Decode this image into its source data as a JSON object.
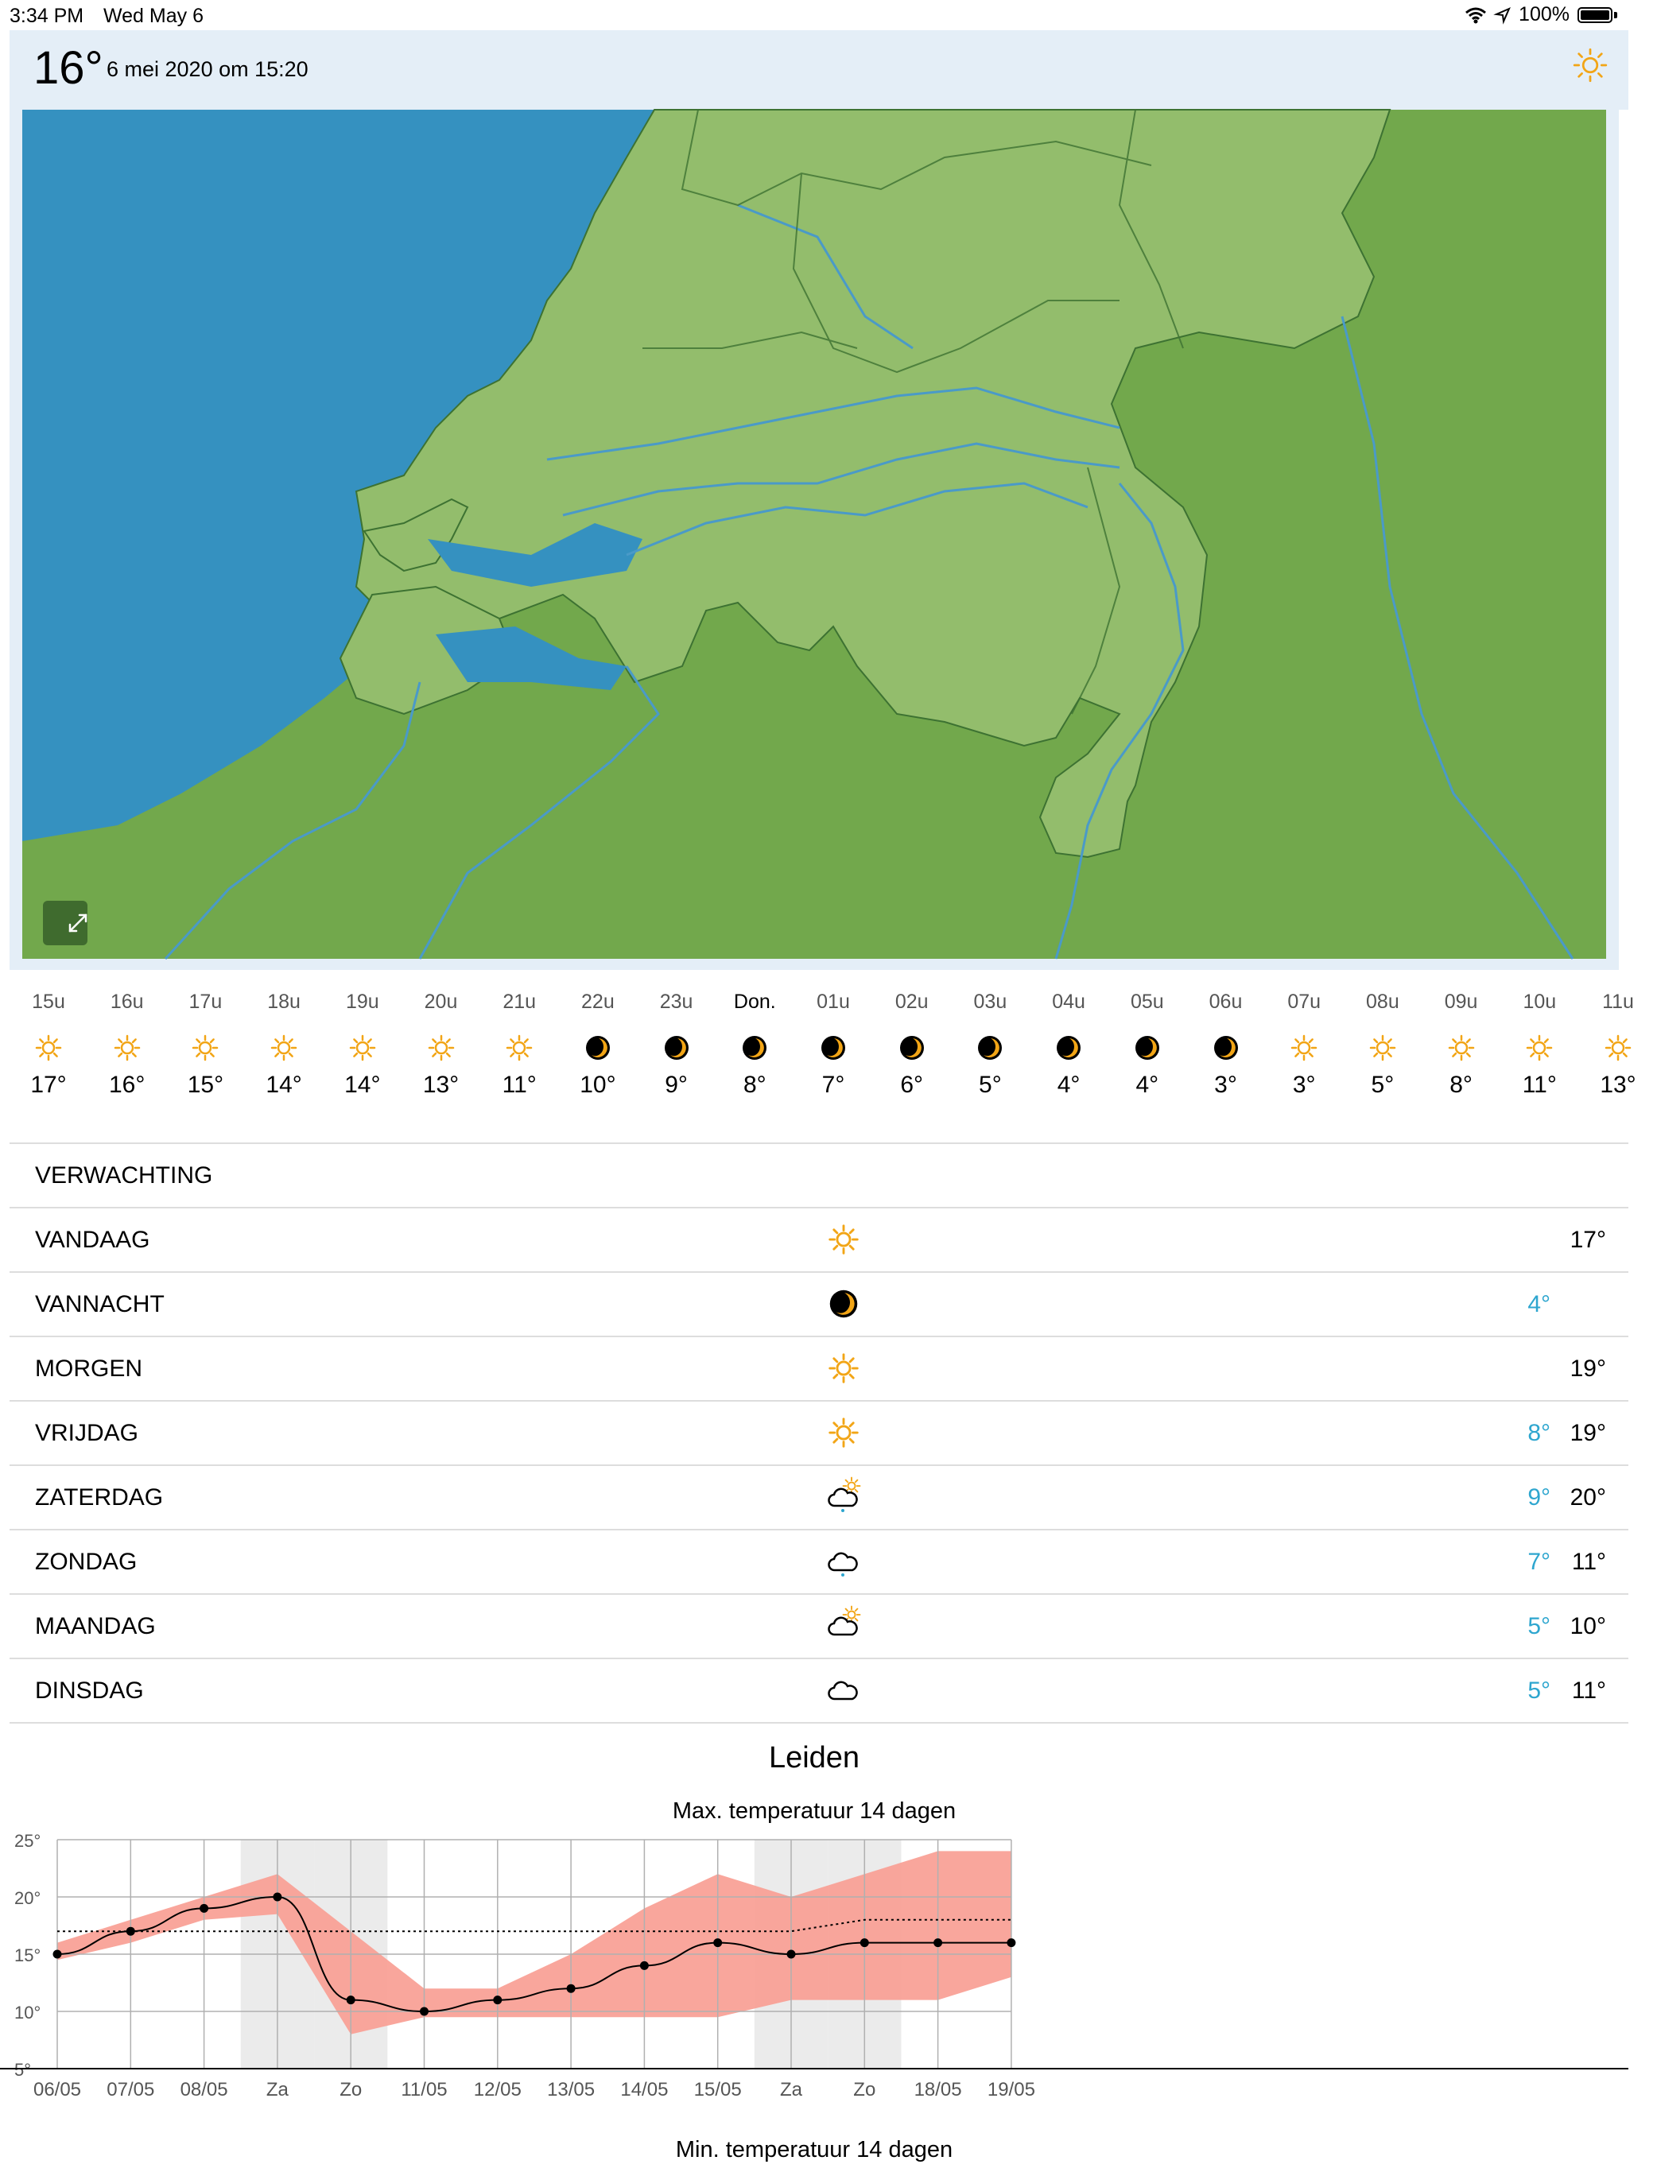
{
  "status_bar": {
    "time": "3:34 PM",
    "date": "Wed May 6",
    "battery": "100%",
    "icons": [
      "wifi-icon",
      "location-arrow-icon",
      "battery-icon"
    ]
  },
  "header": {
    "temperature": "16°",
    "timestamp": "6 mei 2020 om 15:20",
    "weather_icon": "sun-icon"
  },
  "map": {
    "expand_icon": "expand-arrows-icon",
    "colors": {
      "sea": "#3591c0",
      "land": "#72a84c",
      "netherlands": "#93bd6c",
      "rivers": "#4a9ac8"
    }
  },
  "hourly": [
    {
      "label": "15u",
      "icon": "sun",
      "temp": "17°"
    },
    {
      "label": "16u",
      "icon": "sun",
      "temp": "16°"
    },
    {
      "label": "17u",
      "icon": "sun",
      "temp": "15°"
    },
    {
      "label": "18u",
      "icon": "sun",
      "temp": "14°"
    },
    {
      "label": "19u",
      "icon": "sun",
      "temp": "14°"
    },
    {
      "label": "20u",
      "icon": "sun",
      "temp": "13°"
    },
    {
      "label": "21u",
      "icon": "sun",
      "temp": "11°"
    },
    {
      "label": "22u",
      "icon": "moon",
      "temp": "10°"
    },
    {
      "label": "23u",
      "icon": "moon",
      "temp": "9°"
    },
    {
      "label": "Don.",
      "icon": "moon",
      "temp": "8°"
    },
    {
      "label": "01u",
      "icon": "moon",
      "temp": "7°"
    },
    {
      "label": "02u",
      "icon": "moon",
      "temp": "6°"
    },
    {
      "label": "03u",
      "icon": "moon",
      "temp": "5°"
    },
    {
      "label": "04u",
      "icon": "moon",
      "temp": "4°"
    },
    {
      "label": "05u",
      "icon": "moon",
      "temp": "4°"
    },
    {
      "label": "06u",
      "icon": "moon",
      "temp": "3°"
    },
    {
      "label": "07u",
      "icon": "sun",
      "temp": "3°"
    },
    {
      "label": "08u",
      "icon": "sun",
      "temp": "5°"
    },
    {
      "label": "09u",
      "icon": "sun",
      "temp": "8°"
    },
    {
      "label": "10u",
      "icon": "sun",
      "temp": "11°"
    },
    {
      "label": "11u",
      "icon": "sun",
      "temp": "13°"
    }
  ],
  "forecast": {
    "title": "VERWACHTING",
    "days": [
      {
        "name": "VANDAAG",
        "icon": "sun",
        "low": "",
        "high": "17°"
      },
      {
        "name": "VANNACHT",
        "icon": "moon",
        "low": "4°",
        "high": ""
      },
      {
        "name": "MORGEN",
        "icon": "sun",
        "low": "",
        "high": "19°"
      },
      {
        "name": "VRIJDAG",
        "icon": "sun",
        "low": "8°",
        "high": "19°"
      },
      {
        "name": "ZATERDAG",
        "icon": "sun-cloud-rain",
        "low": "9°",
        "high": "20°"
      },
      {
        "name": "ZONDAG",
        "icon": "cloud-rain",
        "low": "7°",
        "high": "11°"
      },
      {
        "name": "MAANDAG",
        "icon": "sun-cloud",
        "low": "5°",
        "high": "10°"
      },
      {
        "name": "DINSDAG",
        "icon": "cloud",
        "low": "5°",
        "high": "11°"
      }
    ],
    "colors": {
      "low": "#2ea6cf",
      "sun": "#f2a516"
    }
  },
  "location": "Leiden",
  "chart_titles": {
    "max": "Max. temperatuur 14 dagen",
    "min": "Min. temperatuur 14 dagen"
  },
  "chart_data": {
    "type": "line",
    "title": "Max. temperatuur 14 dagen",
    "categories": [
      "06/05",
      "07/05",
      "08/05",
      "Za",
      "Zo",
      "11/05",
      "12/05",
      "13/05",
      "14/05",
      "15/05",
      "Za",
      "Zo",
      "18/05",
      "19/05"
    ],
    "yticks": [
      "25°",
      "20°",
      "15°",
      "10°",
      "5°"
    ],
    "ylim": [
      5,
      25
    ],
    "weekend_indices": [
      3,
      4,
      10,
      11
    ],
    "series": [
      {
        "values": [
          15,
          17,
          19,
          20,
          11,
          10,
          11,
          12,
          14,
          16,
          15,
          16,
          16,
          16
        ]
      },
      {
        "type": "dotted",
        "values": [
          17,
          17,
          17,
          17,
          17,
          17,
          17,
          17,
          17,
          17,
          17,
          18,
          18,
          18
        ]
      }
    ],
    "range_upper": [
      16,
      18,
      20,
      22,
      17,
      12,
      12,
      15,
      19,
      22,
      20,
      22,
      24,
      24
    ],
    "range_lower": [
      14.5,
      16,
      18,
      18.5,
      8,
      9.5,
      9.5,
      9.5,
      9.5,
      9.5,
      11,
      11,
      11,
      13
    ],
    "colors": {
      "range": "#f9a197",
      "weekend": "#ebebeb",
      "line": "#000000",
      "grid": "#b0b0b0"
    }
  }
}
